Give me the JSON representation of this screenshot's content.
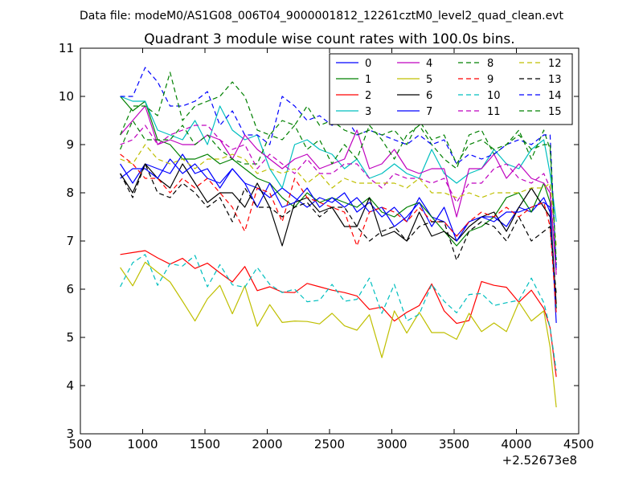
{
  "chart_data": {
    "type": "line",
    "suptitle": "Data file: modeM0/AS1G08_006T04_9000001812_12261cztM0_level2_quad_clean.evt",
    "title": "Quadrant 3 module wise count rates with 100.0s bins.",
    "xlabel": "",
    "ylabel": "",
    "x_offset_label": "+2.52673e8",
    "xlim": [
      500,
      4500
    ],
    "ylim": [
      3,
      11
    ],
    "xticks": [
      "500",
      "1000",
      "1500",
      "2000",
      "2500",
      "3000",
      "3500",
      "4000",
      "4500"
    ],
    "yticks": [
      "3",
      "4",
      "5",
      "6",
      "7",
      "8",
      "9",
      "10",
      "11"
    ],
    "grid": false,
    "legend_position": "upper right",
    "legend_columns": 4,
    "x": [
      820,
      920,
      1020,
      1120,
      1220,
      1320,
      1420,
      1520,
      1620,
      1720,
      1820,
      1920,
      2020,
      2120,
      2220,
      2320,
      2420,
      2520,
      2620,
      2720,
      2820,
      2920,
      3020,
      3120,
      3220,
      3320,
      3420,
      3520,
      3620,
      3720,
      3820,
      3920,
      4020,
      4120,
      4220,
      4270,
      4320
    ],
    "series": [
      {
        "name": "0",
        "color": "#0000ff",
        "dash": "solid",
        "values": [
          8.6,
          8.2,
          8.6,
          8.5,
          8.4,
          8.8,
          8.4,
          8.5,
          8.1,
          8.5,
          8.2,
          8.1,
          7.9,
          8.1,
          7.9,
          7.7,
          7.9,
          7.8,
          8.0,
          7.6,
          7.8,
          7.5,
          7.7,
          7.4,
          7.9,
          7.5,
          7.4,
          7.1,
          7.4,
          7.5,
          7.5,
          7.3,
          7.7,
          7.6,
          7.9,
          7.6,
          5.6
        ]
      },
      {
        "name": "1",
        "color": "#008000",
        "dash": "solid",
        "values": [
          10.0,
          9.7,
          9.9,
          9.1,
          9.0,
          8.7,
          8.7,
          8.8,
          8.6,
          8.7,
          8.5,
          8.3,
          8.2,
          7.9,
          7.7,
          8.0,
          7.8,
          7.9,
          7.8,
          7.7,
          7.9,
          7.6,
          7.5,
          7.7,
          7.8,
          7.5,
          7.2,
          6.9,
          7.2,
          7.3,
          7.5,
          7.9,
          8.0,
          7.6,
          8.2,
          7.8,
          5.6
        ]
      },
      {
        "name": "2",
        "color": "#ff0000",
        "dash": "solid",
        "values": [
          6.72,
          6.76,
          6.8,
          6.65,
          6.52,
          6.64,
          6.43,
          6.54,
          6.34,
          6.15,
          6.47,
          5.97,
          6.05,
          5.94,
          5.93,
          6.12,
          6.05,
          5.98,
          5.93,
          5.86,
          5.58,
          5.63,
          5.34,
          5.52,
          5.66,
          6.11,
          5.55,
          5.29,
          5.35,
          6.16,
          6.08,
          6.04,
          5.73,
          5.98,
          5.6,
          5.2,
          4.18
        ]
      },
      {
        "name": "3",
        "color": "#00bfbf",
        "dash": "solid",
        "values": [
          10.0,
          9.9,
          9.9,
          9.3,
          9.2,
          9.1,
          9.5,
          9.0,
          9.8,
          9.3,
          9.1,
          9.2,
          8.5,
          8.1,
          9.0,
          9.1,
          8.9,
          8.8,
          8.5,
          8.7,
          8.3,
          8.4,
          8.6,
          8.4,
          8.3,
          8.9,
          8.4,
          8.2,
          8.4,
          8.5,
          8.9,
          8.6,
          8.5,
          8.9,
          9.1,
          8.4,
          7.4
        ]
      },
      {
        "name": "4",
        "color": "#bf00bf",
        "dash": "solid",
        "values": [
          9.2,
          9.5,
          9.8,
          9.0,
          9.1,
          9.0,
          9.0,
          9.2,
          9.1,
          8.7,
          9.2,
          8.9,
          8.7,
          8.5,
          8.7,
          8.8,
          8.5,
          8.6,
          8.7,
          9.3,
          8.5,
          8.6,
          8.9,
          8.5,
          8.4,
          8.5,
          8.5,
          7.5,
          8.5,
          8.5,
          8.8,
          8.3,
          8.6,
          8.3,
          8.2,
          8.0,
          6.3
        ]
      },
      {
        "name": "5",
        "color": "#bfbf00",
        "dash": "solid",
        "values": [
          6.45,
          6.07,
          6.56,
          6.35,
          6.15,
          5.75,
          5.34,
          5.8,
          6.08,
          5.49,
          6.07,
          5.23,
          5.68,
          5.31,
          5.34,
          5.33,
          5.28,
          5.5,
          5.24,
          5.15,
          5.47,
          4.58,
          5.55,
          5.09,
          5.52,
          5.1,
          5.1,
          4.96,
          5.5,
          5.12,
          5.3,
          5.12,
          5.73,
          5.34,
          5.55,
          4.8,
          3.55
        ]
      },
      {
        "name": "6",
        "color": "#000000",
        "dash": "solid",
        "values": [
          8.4,
          8.0,
          8.6,
          8.3,
          8.1,
          8.6,
          8.2,
          7.8,
          8.0,
          8.0,
          7.7,
          8.2,
          7.7,
          6.9,
          7.8,
          7.9,
          7.6,
          7.7,
          7.3,
          7.3,
          7.9,
          7.1,
          7.2,
          7.0,
          7.6,
          7.1,
          7.2,
          7.0,
          7.3,
          7.5,
          7.6,
          7.2,
          7.7,
          8.1,
          7.7,
          7.5,
          5.7
        ]
      },
      {
        "name": "7",
        "color": "#0000ff",
        "dash": "solid",
        "values": [
          8.3,
          8.5,
          8.5,
          8.3,
          8.7,
          8.4,
          8.6,
          8.3,
          8.2,
          8.5,
          8.2,
          7.7,
          8.2,
          7.7,
          7.8,
          8.1,
          7.7,
          7.9,
          7.7,
          7.9,
          7.6,
          7.7,
          7.3,
          7.5,
          7.8,
          7.3,
          7.7,
          7.0,
          7.4,
          7.5,
          7.4,
          7.6,
          7.6,
          7.7,
          7.8,
          7.7,
          5.3
        ]
      },
      {
        "name": "8",
        "color": "#008000",
        "dash": "dashed",
        "values": [
          8.9,
          9.5,
          9.1,
          9.1,
          9.1,
          9.4,
          9.0,
          9.2,
          8.9,
          8.7,
          8.6,
          8.6,
          9.2,
          9.1,
          9.4,
          8.9,
          9.1,
          8.6,
          9.0,
          8.7,
          9.4,
          9.1,
          8.7,
          9.2,
          9.4,
          9.0,
          8.7,
          8.5,
          9.2,
          9.3,
          8.8,
          9.0,
          9.3,
          8.7,
          9.3,
          8.9,
          6.5
        ]
      },
      {
        "name": "9",
        "color": "#ff0000",
        "dash": "dashed",
        "values": [
          8.8,
          8.6,
          8.3,
          8.3,
          8.0,
          8.3,
          8.1,
          8.3,
          8.0,
          7.7,
          7.2,
          8.1,
          8.0,
          7.4,
          8.3,
          7.9,
          7.8,
          7.7,
          7.6,
          6.9,
          7.6,
          7.7,
          7.6,
          7.4,
          7.7,
          7.4,
          7.4,
          7.1,
          7.4,
          7.6,
          7.5,
          7.7,
          7.5,
          7.7,
          7.8,
          7.3,
          5.5
        ]
      },
      {
        "name": "10",
        "color": "#00bfbf",
        "dash": "dashed",
        "values": [
          6.05,
          6.55,
          6.72,
          6.08,
          6.53,
          6.48,
          6.7,
          6.05,
          6.51,
          6.09,
          6.04,
          6.45,
          6.1,
          5.93,
          6.0,
          5.74,
          5.77,
          6.1,
          5.75,
          5.79,
          6.23,
          5.5,
          6.1,
          5.34,
          5.48,
          6.1,
          5.75,
          5.51,
          5.89,
          5.91,
          5.66,
          5.72,
          5.77,
          6.23,
          5.72,
          5.2,
          4.31
        ]
      },
      {
        "name": "11",
        "color": "#bf00bf",
        "dash": "dashed",
        "values": [
          9.0,
          9.1,
          9.4,
          9.0,
          9.2,
          9.3,
          9.4,
          9.4,
          9.1,
          8.9,
          9.0,
          8.5,
          8.8,
          8.6,
          8.4,
          8.7,
          8.4,
          8.4,
          8.6,
          8.6,
          8.3,
          8.1,
          8.4,
          8.3,
          8.3,
          8.2,
          8.3,
          7.8,
          8.2,
          8.2,
          8.5,
          8.6,
          8.3,
          8.2,
          8.4,
          8.1,
          6.4
        ]
      },
      {
        "name": "12",
        "color": "#bfbf00",
        "dash": "dashed",
        "values": [
          8.7,
          8.6,
          9.0,
          8.7,
          8.6,
          8.7,
          8.5,
          8.7,
          8.7,
          8.8,
          8.7,
          8.4,
          8.5,
          8.4,
          8.5,
          8.2,
          8.4,
          8.1,
          8.3,
          8.2,
          8.2,
          8.2,
          8.2,
          8.1,
          8.3,
          8.0,
          8.0,
          7.9,
          8.0,
          7.9,
          8.0,
          8.0,
          8.0,
          8.1,
          8.1,
          8.2,
          6.9
        ]
      },
      {
        "name": "13",
        "color": "#000000",
        "dash": "dashed",
        "values": [
          8.4,
          7.9,
          8.6,
          8.0,
          7.9,
          8.2,
          8.0,
          7.7,
          7.9,
          7.4,
          8.1,
          7.7,
          7.7,
          7.5,
          7.7,
          7.8,
          7.5,
          7.7,
          7.7,
          7.3,
          7.0,
          7.2,
          7.3,
          7.0,
          7.3,
          7.4,
          7.4,
          6.6,
          7.2,
          7.4,
          7.3,
          7.0,
          7.5,
          7.0,
          7.2,
          7.3,
          5.9
        ]
      },
      {
        "name": "14",
        "color": "#0000ff",
        "dash": "dashed",
        "values": [
          10.0,
          10.0,
          10.6,
          10.3,
          9.8,
          9.8,
          9.9,
          10.1,
          9.4,
          9.7,
          9.2,
          9.2,
          9.0,
          10.0,
          9.8,
          9.5,
          9.6,
          9.4,
          9.6,
          9.2,
          9.3,
          9.2,
          9.1,
          9.0,
          9.2,
          9.0,
          9.1,
          8.6,
          8.8,
          8.7,
          8.8,
          9.0,
          9.1,
          9.0,
          9.2,
          9.2,
          6.4
        ]
      },
      {
        "name": "15",
        "color": "#008000",
        "dash": "dashed",
        "values": [
          9.2,
          9.8,
          9.8,
          9.6,
          10.5,
          9.5,
          9.8,
          9.9,
          10.0,
          10.3,
          10.0,
          9.3,
          9.2,
          9.5,
          9.4,
          9.8,
          9.4,
          9.5,
          9.3,
          9.2,
          9.3,
          9.2,
          9.3,
          9.0,
          9.5,
          9.1,
          9.2,
          8.6,
          9.0,
          9.1,
          8.9,
          9.0,
          9.2,
          8.9,
          9.0,
          9.0,
          6.6
        ]
      }
    ]
  }
}
